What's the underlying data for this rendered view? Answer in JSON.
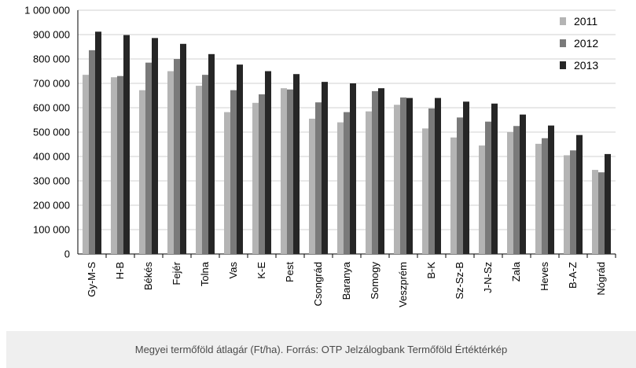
{
  "caption": "Megyei termőföld átlagár (Ft/ha). Forrás: OTP Jelzálogbank Termőföld Értéktérkép",
  "chart_data": {
    "type": "bar",
    "categories": [
      "Gy-M-S",
      "H-B",
      "Békés",
      "Fejér",
      "Tolna",
      "Vas",
      "K-E",
      "Pest",
      "Csongrád",
      "Baranya",
      "Somogy",
      "Veszprém",
      "B-K",
      "Sz-Sz-B",
      "J-N-Sz",
      "Zala",
      "Heves",
      "B-A-Z",
      "Nógrád"
    ],
    "series": [
      {
        "name": "2011",
        "color": "#b4b4b4",
        "values": [
          735000,
          725000,
          672000,
          750000,
          690000,
          582000,
          620000,
          680000,
          555000,
          540000,
          585000,
          612000,
          515000,
          478000,
          445000,
          500000,
          452000,
          405000,
          345000
        ]
      },
      {
        "name": "2012",
        "color": "#7a7a7a",
        "values": [
          836000,
          730000,
          785000,
          800000,
          735000,
          672000,
          655000,
          675000,
          622000,
          582000,
          668000,
          642000,
          597000,
          560000,
          543000,
          525000,
          475000,
          425000,
          335000
        ]
      },
      {
        "name": "2013",
        "color": "#262626",
        "values": [
          912000,
          898000,
          886000,
          862000,
          820000,
          777000,
          750000,
          738000,
          706000,
          700000,
          680000,
          640000,
          640000,
          625000,
          617000,
          572000,
          527000,
          488000,
          410000
        ]
      }
    ],
    "ylim": [
      0,
      1000000
    ],
    "yticks": [
      0,
      100000,
      200000,
      300000,
      400000,
      500000,
      600000,
      700000,
      800000,
      900000,
      1000000
    ],
    "ytick_labels": [
      "0",
      "100 000",
      "200 000",
      "300 000",
      "400 000",
      "500 000",
      "600 000",
      "700 000",
      "800 000",
      "900 000",
      "1 000 000"
    ],
    "grid": true,
    "legend_position": "top-right"
  }
}
